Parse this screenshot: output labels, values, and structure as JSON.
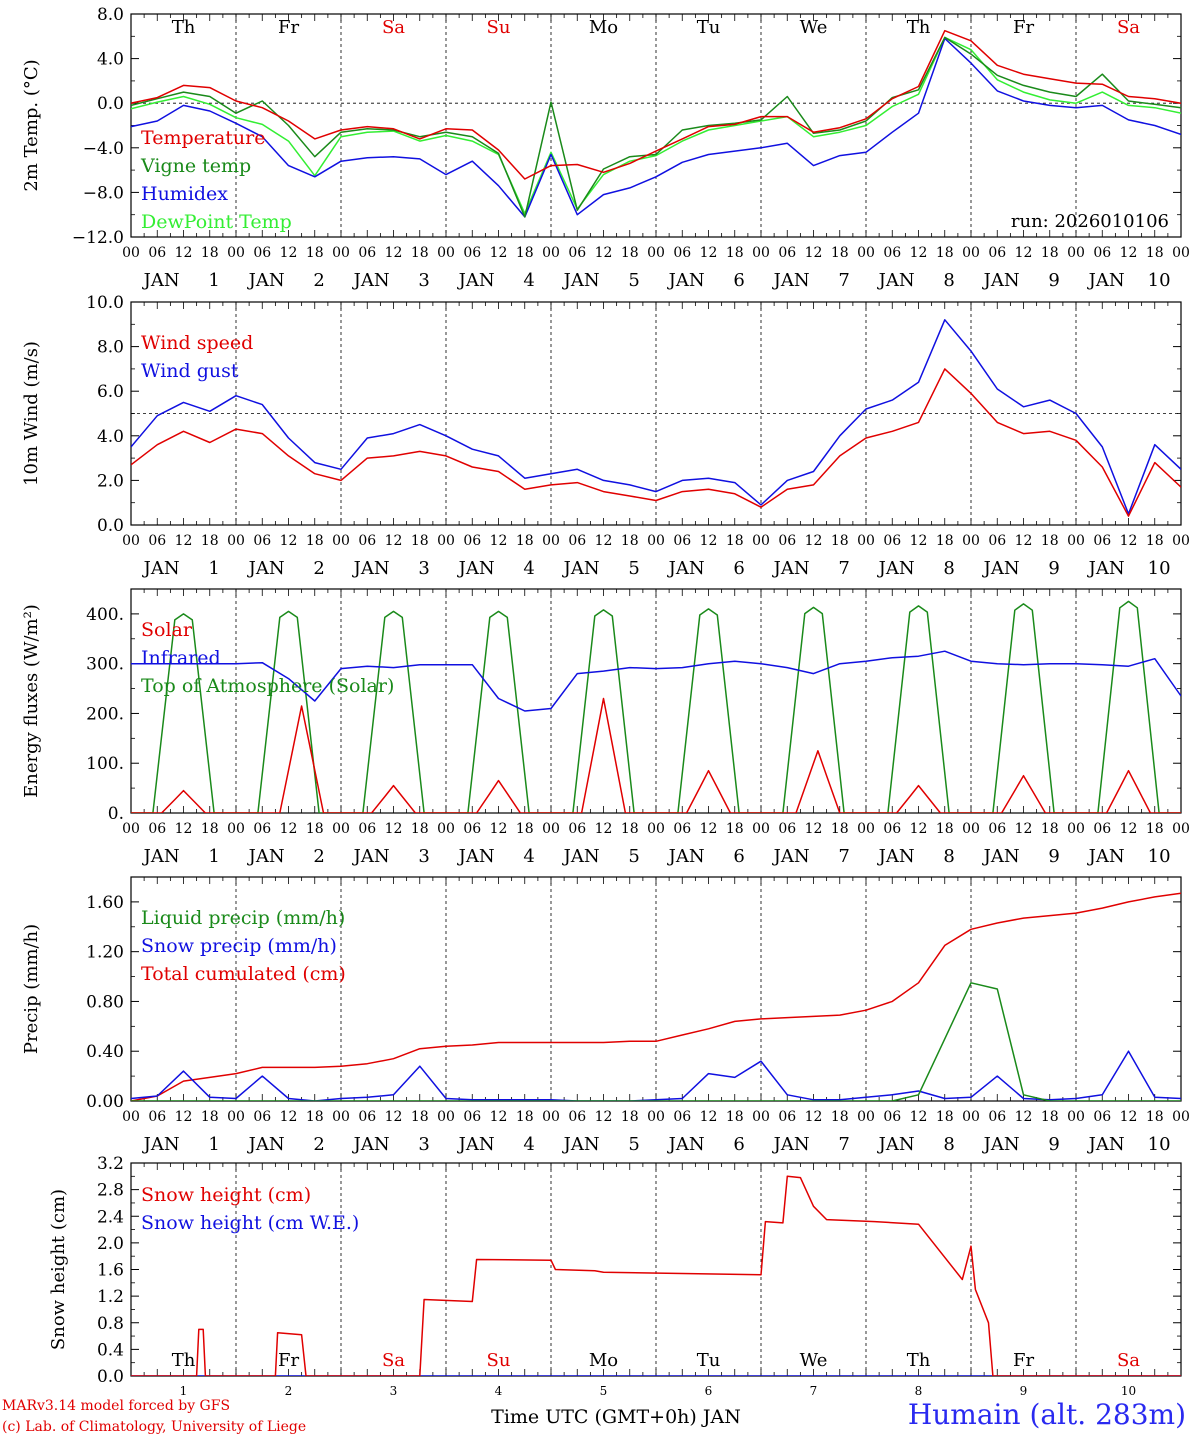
{
  "footer": {
    "credit_line1": "MARv3.14 model forced by GFS",
    "credit_line2": "(c) Lab. of Climatology, University of Liege",
    "station": "Humain (alt. 283m)",
    "bottom_xlabel": "Time UTC (GMT+0h) JAN"
  },
  "colors": {
    "red": "#e00000",
    "green": "#1a8a1a",
    "blue": "#1010e0",
    "lime": "#33ee33",
    "day_red": "#e00000",
    "day_black": "#000000"
  },
  "days": [
    {
      "abbr": "Th",
      "date": "1",
      "weekend": false
    },
    {
      "abbr": "Fr",
      "date": "2",
      "weekend": false
    },
    {
      "abbr": "Sa",
      "date": "3",
      "weekend": true
    },
    {
      "abbr": "Su",
      "date": "4",
      "weekend": true
    },
    {
      "abbr": "Mo",
      "date": "5",
      "weekend": false
    },
    {
      "abbr": "Tu",
      "date": "6",
      "weekend": false
    },
    {
      "abbr": "We",
      "date": "7",
      "weekend": false
    },
    {
      "abbr": "Th",
      "date": "8",
      "weekend": false
    },
    {
      "abbr": "Fr",
      "date": "9",
      "weekend": false
    },
    {
      "abbr": "Sa",
      "date": "10",
      "weekend": true
    }
  ],
  "hour_labels": [
    "00",
    "06",
    "12",
    "18"
  ],
  "month_label": "JAN",
  "chart_data": [
    {
      "id": "temp",
      "type": "line",
      "ylabel": "2m Temp. (°C)",
      "ylim": [
        -12,
        8
      ],
      "yticks": [
        -12,
        -8,
        -4,
        0,
        4,
        8
      ],
      "ytick_labels": [
        "−12.0",
        "−8.0",
        "−4.0",
        "0.0",
        "4.0",
        "8.0"
      ],
      "reference_line": 0,
      "annotation": "run: 2026010106",
      "show_day_names": true,
      "x_hours": [
        0,
        6,
        12,
        18,
        24,
        30,
        36,
        42,
        48,
        54,
        60,
        66,
        72,
        78,
        84,
        90,
        96,
        102,
        108,
        114,
        120,
        126,
        132,
        138,
        144,
        150,
        156,
        162,
        168,
        174,
        180,
        186,
        192,
        198,
        204,
        210,
        216,
        222,
        228,
        234,
        240
      ],
      "series": [
        {
          "name": "Temperature",
          "color": "red",
          "values": [
            0.0,
            0.5,
            1.6,
            1.4,
            0.2,
            -0.4,
            -1.6,
            -3.2,
            -2.4,
            -2.1,
            -2.3,
            -3.2,
            -2.3,
            -2.4,
            -4.2,
            -6.8,
            -5.6,
            -5.5,
            -6.2,
            -5.4,
            -4.3,
            -3.2,
            -2.1,
            -1.9,
            -1.2,
            -1.2,
            -2.6,
            -2.2,
            -1.4,
            0.4,
            1.5,
            6.5,
            5.6,
            3.4,
            2.6,
            2.2,
            1.8,
            1.7,
            0.6,
            0.4,
            0.0
          ]
        },
        {
          "name": "Vigne temp",
          "color": "green",
          "values": [
            -0.2,
            0.4,
            1.0,
            0.6,
            -0.9,
            0.2,
            -2.0,
            -4.8,
            -2.6,
            -2.3,
            -2.4,
            -3.0,
            -2.6,
            -3.0,
            -4.5,
            -10.2,
            0.1,
            -9.6,
            -5.9,
            -4.8,
            -4.6,
            -2.4,
            -2.0,
            -1.8,
            -1.5,
            0.6,
            -2.7,
            -2.4,
            -1.6,
            0.5,
            1.2,
            5.9,
            4.4,
            2.5,
            1.6,
            1.0,
            0.6,
            2.6,
            0.2,
            -0.1,
            -0.4
          ]
        },
        {
          "name": "Humidex",
          "color": "blue",
          "values": [
            -2.1,
            -1.6,
            -0.2,
            -0.7,
            -1.8,
            -3.0,
            -5.6,
            -6.6,
            -5.2,
            -4.9,
            -4.8,
            -5.0,
            -6.4,
            -5.2,
            -7.4,
            -10.2,
            -4.6,
            -10.0,
            -8.2,
            -7.6,
            -6.6,
            -5.3,
            -4.6,
            -4.3,
            -4.0,
            -3.6,
            -5.6,
            -4.7,
            -4.4,
            -2.6,
            -0.9,
            5.8,
            3.6,
            1.1,
            0.2,
            -0.2,
            -0.4,
            -0.2,
            -1.5,
            -2.0,
            -2.8
          ]
        },
        {
          "name": "DewPoint Temp",
          "color": "lime",
          "values": [
            -0.5,
            0.1,
            0.6,
            -0.1,
            -1.3,
            -1.9,
            -3.4,
            -6.5,
            -3.0,
            -2.6,
            -2.5,
            -3.4,
            -2.9,
            -3.4,
            -4.6,
            -9.9,
            -4.4,
            -9.5,
            -6.4,
            -5.2,
            -4.7,
            -3.4,
            -2.4,
            -2.0,
            -1.6,
            -1.2,
            -3.0,
            -2.6,
            -2.0,
            -0.3,
            0.8,
            5.9,
            4.8,
            2.1,
            1.0,
            0.3,
            0.0,
            1.0,
            -0.2,
            -0.4,
            -0.9
          ]
        }
      ]
    },
    {
      "id": "wind",
      "type": "line",
      "ylabel": "10m Wind (m/s)",
      "ylim": [
        0,
        10
      ],
      "yticks": [
        0,
        2,
        4,
        6,
        8,
        10
      ],
      "ytick_labels": [
        "0.0",
        "2.0",
        "4.0",
        "6.0",
        "8.0",
        "10.0"
      ],
      "reference_line": 5,
      "show_day_names": false,
      "x_hours": [
        0,
        6,
        12,
        18,
        24,
        30,
        36,
        42,
        48,
        54,
        60,
        66,
        72,
        78,
        84,
        90,
        96,
        102,
        108,
        114,
        120,
        126,
        132,
        138,
        144,
        150,
        156,
        162,
        168,
        174,
        180,
        186,
        192,
        198,
        204,
        210,
        216,
        222,
        228,
        234,
        240
      ],
      "series": [
        {
          "name": "Wind speed",
          "color": "red",
          "values": [
            2.7,
            3.6,
            4.2,
            3.7,
            4.3,
            4.1,
            3.1,
            2.3,
            2.0,
            3.0,
            3.1,
            3.3,
            3.1,
            2.6,
            2.4,
            1.6,
            1.8,
            1.9,
            1.5,
            1.3,
            1.1,
            1.5,
            1.6,
            1.4,
            0.8,
            1.6,
            1.8,
            3.1,
            3.9,
            4.2,
            4.6,
            7.0,
            5.9,
            4.6,
            4.1,
            4.2,
            3.8,
            2.6,
            0.4,
            2.8,
            1.7
          ]
        },
        {
          "name": "Wind gust",
          "color": "blue",
          "values": [
            3.5,
            4.9,
            5.5,
            5.1,
            5.8,
            5.4,
            3.9,
            2.8,
            2.5,
            3.9,
            4.1,
            4.5,
            4.0,
            3.4,
            3.1,
            2.1,
            2.3,
            2.5,
            2.0,
            1.8,
            1.5,
            2.0,
            2.1,
            1.9,
            0.9,
            2.0,
            2.4,
            4.0,
            5.2,
            5.6,
            6.4,
            9.2,
            7.8,
            6.1,
            5.3,
            5.6,
            5.0,
            3.5,
            0.5,
            3.6,
            2.5
          ]
        }
      ]
    },
    {
      "id": "energy",
      "type": "line",
      "ylabel": "Energy fluxes (W/m²)",
      "ylim": [
        0,
        450
      ],
      "yticks": [
        0,
        100,
        200,
        300,
        400
      ],
      "ytick_labels": [
        "0.",
        "100.",
        "200.",
        "300.",
        "400."
      ],
      "reference_line": null,
      "show_day_names": false,
      "toa_peak_hour": 12,
      "toa_halfwidth_hours": 7,
      "toa_peaks": [
        400,
        405,
        405,
        405,
        408,
        410,
        413,
        416,
        420,
        425
      ],
      "solar_peaks": [
        45,
        215,
        55,
        65,
        230,
        85,
        125,
        55,
        75,
        85
      ],
      "solar_peak_hours": [
        12,
        15,
        12,
        12,
        12,
        12,
        13,
        12,
        12,
        12
      ],
      "infrared_x_hours": [
        0,
        6,
        12,
        18,
        24,
        30,
        36,
        42,
        48,
        54,
        60,
        66,
        72,
        78,
        84,
        90,
        96,
        102,
        108,
        114,
        120,
        126,
        132,
        138,
        144,
        150,
        156,
        162,
        168,
        174,
        180,
        186,
        192,
        198,
        204,
        210,
        216,
        222,
        228,
        234,
        240
      ],
      "infrared_values": [
        300,
        300,
        300,
        300,
        300,
        302,
        270,
        225,
        290,
        295,
        292,
        298,
        298,
        298,
        230,
        205,
        210,
        280,
        285,
        292,
        290,
        292,
        300,
        305,
        300,
        292,
        280,
        300,
        305,
        312,
        315,
        325,
        305,
        300,
        298,
        300,
        300,
        298,
        295,
        310,
        235
      ],
      "series": [
        {
          "name": "Solar",
          "color": "red"
        },
        {
          "name": "Infrared",
          "color": "blue"
        },
        {
          "name": "Top of Atmosphere (Solar)",
          "color": "green"
        }
      ]
    },
    {
      "id": "precip",
      "type": "line",
      "ylabel": "Precip (mm/h)",
      "ylim": [
        0,
        1.8
      ],
      "yticks": [
        0,
        0.4,
        0.8,
        1.2,
        1.6
      ],
      "ytick_labels": [
        "0.00",
        "0.40",
        "0.80",
        "1.20",
        "1.60"
      ],
      "reference_line": null,
      "show_day_names": false,
      "x_hours": [
        0,
        6,
        12,
        18,
        24,
        30,
        36,
        42,
        48,
        54,
        60,
        66,
        72,
        78,
        84,
        90,
        96,
        102,
        108,
        114,
        120,
        126,
        132,
        138,
        144,
        150,
        156,
        162,
        168,
        174,
        180,
        186,
        192,
        198,
        204,
        210,
        216,
        222,
        228,
        234,
        240
      ],
      "series": [
        {
          "name": "Liquid precip (mm/h)",
          "color": "green",
          "values": [
            0,
            0,
            0,
            0,
            0,
            0,
            0,
            0,
            0,
            0,
            0,
            0,
            0,
            0,
            0,
            0,
            0,
            0,
            0,
            0,
            0,
            0,
            0,
            0,
            0,
            0,
            0,
            0,
            0,
            0,
            0.05,
            0.5,
            0.95,
            0.9,
            0.05,
            0,
            0,
            0,
            0,
            0,
            0
          ]
        },
        {
          "name": "Snow precip (mm/h)",
          "color": "blue",
          "values": [
            0.02,
            0.04,
            0.24,
            0.03,
            0.02,
            0.2,
            0.02,
            0,
            0.02,
            0.03,
            0.05,
            0.28,
            0.02,
            0.01,
            0.01,
            0.01,
            0.01,
            0,
            0,
            0,
            0.01,
            0.02,
            0.22,
            0.19,
            0.32,
            0.05,
            0.01,
            0.01,
            0.03,
            0.05,
            0.08,
            0.02,
            0.03,
            0.2,
            0.02,
            0.01,
            0.02,
            0.05,
            0.4,
            0.03,
            0.02
          ]
        },
        {
          "name": "Total cumulated (cm)",
          "color": "red",
          "values": [
            0,
            0.04,
            0.16,
            0.19,
            0.22,
            0.27,
            0.27,
            0.27,
            0.28,
            0.3,
            0.34,
            0.42,
            0.44,
            0.45,
            0.47,
            0.47,
            0.47,
            0.47,
            0.47,
            0.48,
            0.48,
            0.53,
            0.58,
            0.64,
            0.66,
            0.67,
            0.68,
            0.69,
            0.73,
            0.8,
            0.95,
            1.25,
            1.38,
            1.43,
            1.47,
            1.49,
            1.51,
            1.55,
            1.6,
            1.64,
            1.67
          ]
        }
      ]
    },
    {
      "id": "snow",
      "type": "line",
      "ylabel": "Snow height (cm)",
      "ylim": [
        0,
        3.2
      ],
      "yticks": [
        0,
        0.4,
        0.8,
        1.2,
        1.6,
        2.0,
        2.4,
        2.8,
        3.2
      ],
      "ytick_labels": [
        "0.0",
        "0.4",
        "0.8",
        "1.2",
        "1.6",
        "2.0",
        "2.4",
        "2.8",
        "3.2"
      ],
      "reference_line": null,
      "show_day_names_inside": true,
      "x_hours": [
        0,
        15,
        15.5,
        16.5,
        17,
        33,
        33.5,
        39,
        40,
        66,
        67,
        78,
        79,
        96,
        97,
        106,
        108,
        144,
        145,
        149,
        150,
        153,
        156,
        159,
        170,
        180,
        190,
        192,
        193,
        196,
        197,
        198,
        199,
        240
      ],
      "series": [
        {
          "name": "Snow height (cm)",
          "color": "red",
          "values": [
            0,
            0,
            0.7,
            0.7,
            0,
            0,
            0.65,
            0.62,
            0,
            0,
            1.15,
            1.12,
            1.75,
            1.74,
            1.6,
            1.58,
            1.56,
            1.52,
            2.32,
            2.3,
            3.0,
            2.98,
            2.55,
            2.35,
            2.32,
            2.28,
            1.45,
            1.95,
            1.3,
            0.8,
            0.0,
            0,
            0,
            0
          ]
        },
        {
          "name": "Snow height (cm W.E.)",
          "color": "blue",
          "values": [
            0,
            0,
            0,
            0,
            0,
            0,
            0,
            0,
            0,
            0,
            0,
            0,
            0,
            0,
            0,
            0,
            0,
            0,
            0,
            0,
            0,
            0,
            0,
            0,
            0,
            0,
            0,
            0,
            0,
            0,
            0,
            0,
            0,
            0
          ]
        }
      ]
    }
  ]
}
